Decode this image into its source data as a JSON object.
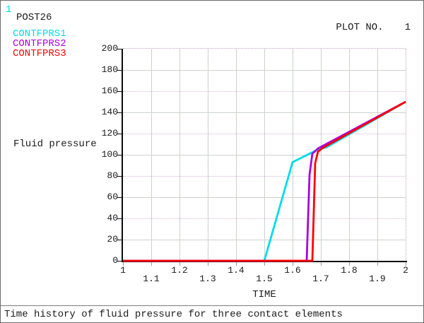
{
  "window": {
    "corner_badge": "1"
  },
  "header": {
    "app_label": "POST26",
    "plot_no_label": "PLOT NO.",
    "plot_no_value": "1"
  },
  "legend": {
    "items": [
      {
        "label": "CONTFPRS1",
        "color": "#00dce8"
      },
      {
        "label": "CONTFPRS2",
        "color": "#aa00dd"
      },
      {
        "label": "CONTFPRS3",
        "color": "#ff0000"
      }
    ]
  },
  "caption": "Time history of fluid pressure for three contact elements",
  "chart_data": {
    "type": "line",
    "title": "Time history of fluid pressure for three contact elements",
    "xlabel": "TIME",
    "ylabel": "Fluid pressure",
    "xlim": [
      1,
      2
    ],
    "ylim": [
      0,
      200
    ],
    "x_tick_labels": [
      "1",
      "1.1",
      "1.2",
      "1.3",
      "1.4",
      "1.5",
      "1.6",
      "1.7",
      "1.8",
      "1.9",
      "2"
    ],
    "y_tick_labels": [
      "0",
      "20",
      "40",
      "60",
      "80",
      "100",
      "120",
      "140",
      "160",
      "180",
      "200"
    ],
    "grid": true,
    "legend_position": "top-left",
    "series": [
      {
        "name": "CONTFPRS1",
        "color": "#00dce8",
        "points": [
          [
            1,
            0
          ],
          [
            1.5,
            0
          ],
          [
            1.6,
            93
          ],
          [
            1.69,
            105
          ],
          [
            1.72,
            107
          ],
          [
            2,
            150
          ]
        ]
      },
      {
        "name": "CONTFPRS2",
        "color": "#aa00dd",
        "points": [
          [
            1,
            0
          ],
          [
            1.65,
            0
          ],
          [
            1.66,
            81
          ],
          [
            1.67,
            101
          ],
          [
            1.69,
            106
          ],
          [
            2,
            150
          ]
        ]
      },
      {
        "name": "CONTFPRS3",
        "color": "#ff0000",
        "points": [
          [
            1,
            0
          ],
          [
            1.67,
            0
          ],
          [
            1.68,
            92
          ],
          [
            1.69,
            103
          ],
          [
            1.71,
            107
          ],
          [
            2,
            150
          ]
        ]
      }
    ]
  }
}
